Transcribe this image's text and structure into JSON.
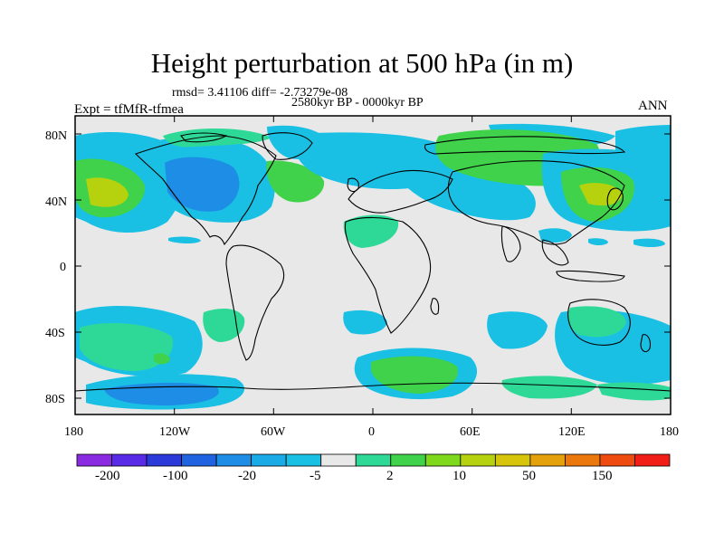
{
  "title": "Height perturbation at 500 hPa (in m)",
  "stats": "rmsd= 3.41106 diff= -2.73279e-08",
  "period": "2580kyr BP - 0000kyr BP",
  "experiment": "Expt = tfMfR-tfmea",
  "season": "ANN",
  "map": {
    "lat_labels": [
      "80N",
      "40N",
      "0",
      "40S",
      "80S"
    ],
    "lon_labels": [
      "180",
      "120W",
      "60W",
      "0",
      "60E",
      "120E",
      "180"
    ],
    "background_color": "#e8e8e8"
  },
  "colorbar": {
    "colors": [
      "#8a2be2",
      "#5a2be6",
      "#2b3ad8",
      "#1f63e0",
      "#1e8de6",
      "#1aabe6",
      "#19c0e3",
      "#e8e8e8",
      "#2ed998",
      "#3fd24a",
      "#7ed81c",
      "#b6d20e",
      "#d6c50a",
      "#e4a10b",
      "#ea780d",
      "#ee4b10",
      "#f01e16"
    ],
    "labels": [
      "-200",
      "-100",
      "-20",
      "-5",
      "2",
      "10",
      "50",
      "150"
    ]
  }
}
